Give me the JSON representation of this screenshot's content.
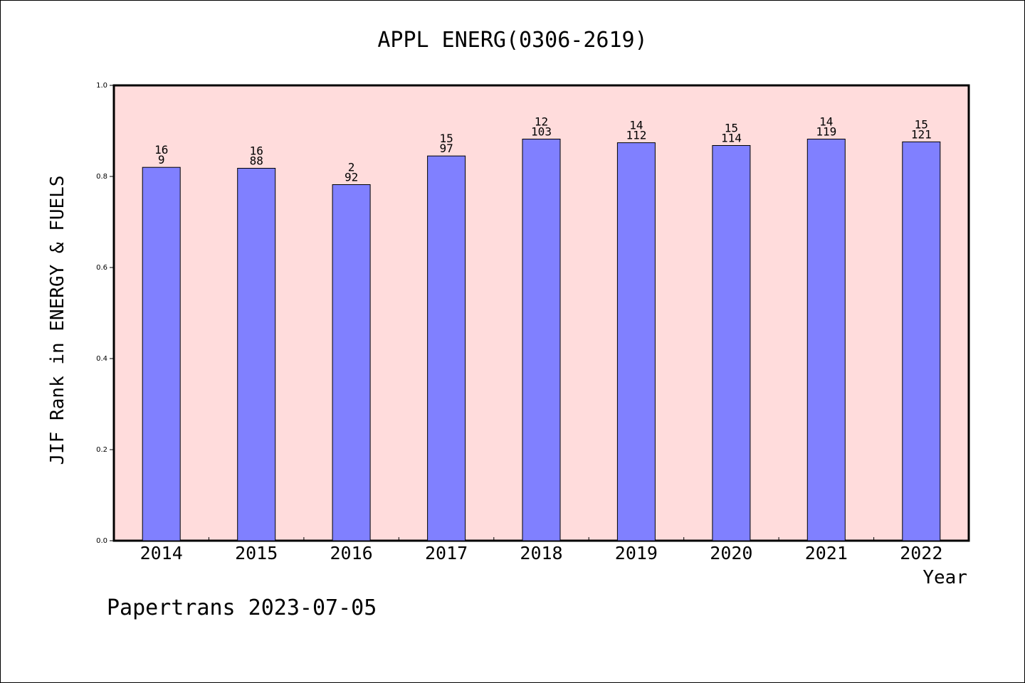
{
  "chart_data": {
    "type": "bar",
    "title": "APPL ENERG(0306-2619)",
    "xlabel": "Year",
    "ylabel": "JIF Rank in ENERGY & FUELS",
    "ylim": [
      0,
      1.0
    ],
    "yticks": [
      "0.0",
      "0.2",
      "0.4",
      "0.6",
      "0.8",
      "1.0"
    ],
    "categories": [
      "2014",
      "2015",
      "2016",
      "2017",
      "2018",
      "2019",
      "2020",
      "2021",
      "2022"
    ],
    "values": [
      0.82,
      0.818,
      0.782,
      0.845,
      0.882,
      0.874,
      0.868,
      0.882,
      0.876
    ],
    "labels_top": [
      "16",
      "16",
      "2",
      "15",
      "12",
      "14",
      "15",
      "14",
      "15"
    ],
    "labels_bottom": [
      "9",
      "88",
      "92",
      "97",
      "103",
      "112",
      "114",
      "119",
      "121"
    ],
    "grid": false,
    "colors": {
      "bar": "#8080ff",
      "plot_background": "#ffdcdc",
      "axis": "#000000"
    }
  },
  "footer": "Papertrans 2023-07-05"
}
